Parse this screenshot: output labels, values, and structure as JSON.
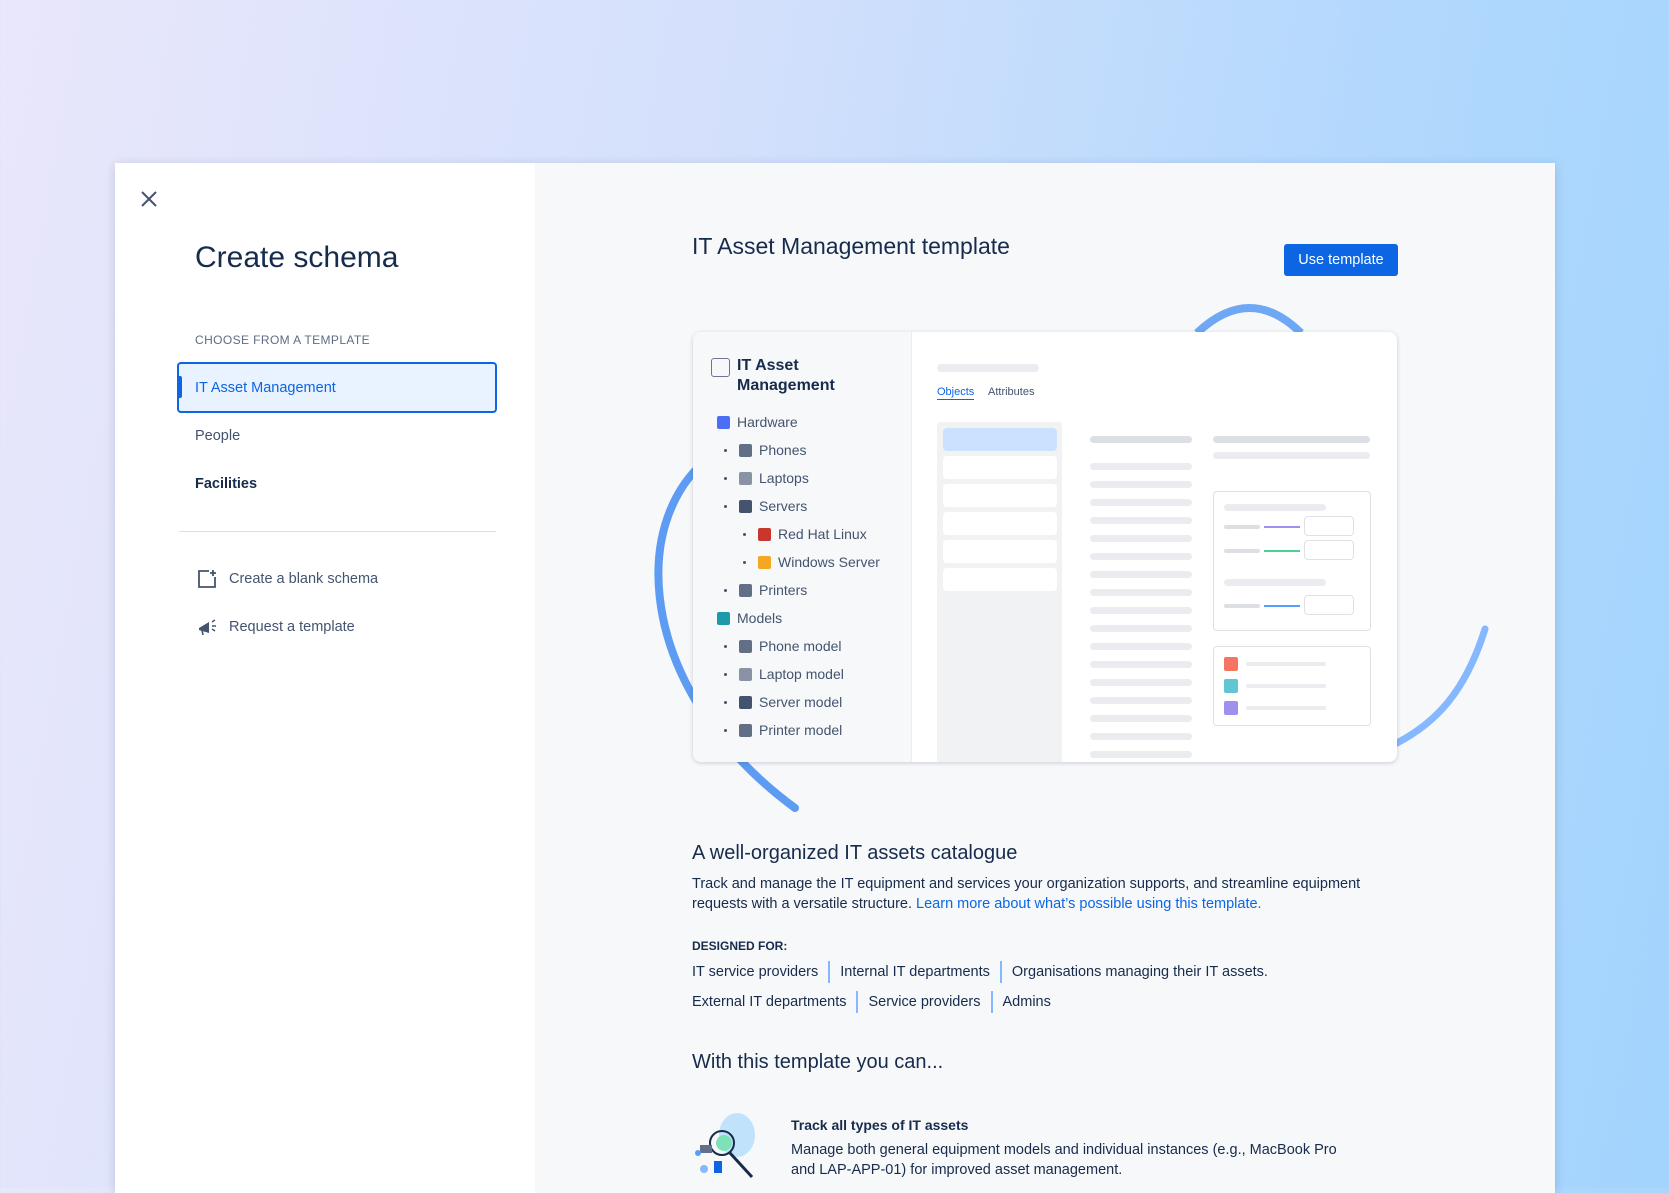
{
  "left": {
    "title": "Create schema",
    "section_label": "CHOOSE FROM A TEMPLATE",
    "templates": [
      {
        "label": "IT Asset Management",
        "selected": true
      },
      {
        "label": "People"
      },
      {
        "label": "Facilities"
      }
    ],
    "actions": [
      {
        "label": "Create a blank schema",
        "icon": "add-page-icon"
      },
      {
        "label": "Request a template",
        "icon": "megaphone-icon"
      }
    ]
  },
  "right": {
    "title": "IT Asset Management template",
    "use_template": "Use template",
    "preview": {
      "title": "IT Asset Management",
      "tabs": [
        "Objects",
        "Attributes"
      ],
      "tree": [
        "Hardware",
        "Phones",
        "Laptops",
        "Servers",
        "Red Hat Linux",
        "Windows Server",
        "Printers",
        "Models",
        "Phone model",
        "Laptop model",
        "Server model",
        "Printer model"
      ],
      "legend_colors": [
        "#f87462",
        "#60c6d2",
        "#9f8fef"
      ]
    },
    "heading": "A well-organized IT assets catalogue",
    "description": "Track and manage the IT equipment and services your organization supports, and streamline equipment requests with a versatile structure.",
    "learn_more": "Learn more about what’s possible using this template.",
    "designed_for_label": "DESIGNED FOR:",
    "designed_for_row1": [
      "IT service providers",
      "Internal IT departments",
      "Organisations managing their IT assets."
    ],
    "designed_for_row2": [
      "External IT departments",
      "Service providers",
      "Admins"
    ],
    "can_heading": "With this template you can...",
    "features": [
      {
        "title": "Track all types of IT assets",
        "description": "Manage both general equipment models and individual instances (e.g., MacBook Pro and LAP-APP-01) for improved asset management."
      }
    ]
  }
}
